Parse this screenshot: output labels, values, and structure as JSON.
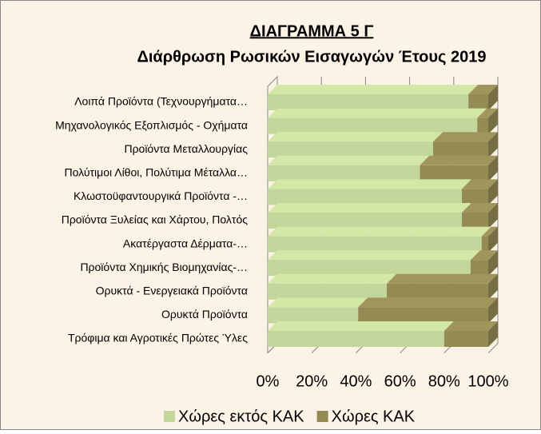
{
  "chart_data": {
    "type": "stacked_bar_horizontal_percent",
    "title": "ΔΙΑΓΡΑΜΜΑ 5 Γ",
    "subtitle": "Διάρθρωση Ρωσικών Εισαγωγών Έτους 2019",
    "categories": [
      "Λοιπά Προϊόντα (Τεχνουργήματα…",
      "Μηχανολογικός Εξοπλισμός - Οχήματα",
      "Προϊόντα Μεταλλουργίας",
      "Πολύτιμοι Λίθοι, Πολύτιμα Μέταλλα…",
      "Κλωστοϋφαντουργικά Προϊόντα -…",
      "Προϊόντα Ξυλείας και Χάρτου, Πολτός",
      "Ακατέργαστα Δέρματα-…",
      "Προϊόντα Χημικής Βιομηχανίας-…",
      "Ορυκτά - Ενεργειακά Προϊόντα",
      "Ορυκτά Προϊόντα",
      "Τρόφιμα και Αγροτικές Πρώτες Ύλες"
    ],
    "series": [
      {
        "name": "Χώρες εκτός ΚΑΚ",
        "color": "#c3d69b",
        "values": [
          91,
          95,
          75,
          69,
          88,
          88,
          97,
          92,
          54,
          41,
          80
        ]
      },
      {
        "name": "Χώρες ΚΑΚ",
        "color": "#948a54",
        "values": [
          9,
          5,
          25,
          31,
          12,
          12,
          3,
          8,
          46,
          59,
          20
        ]
      }
    ],
    "xlim": [
      0,
      100
    ],
    "xticks": [
      {
        "value": 0,
        "label": "0%"
      },
      {
        "value": 20,
        "label": "20%"
      },
      {
        "value": 40,
        "label": "40%"
      },
      {
        "value": 60,
        "label": "60%"
      },
      {
        "value": 80,
        "label": "80%"
      },
      {
        "value": 100,
        "label": "100%"
      }
    ],
    "grid": true,
    "legend": "bottom"
  }
}
